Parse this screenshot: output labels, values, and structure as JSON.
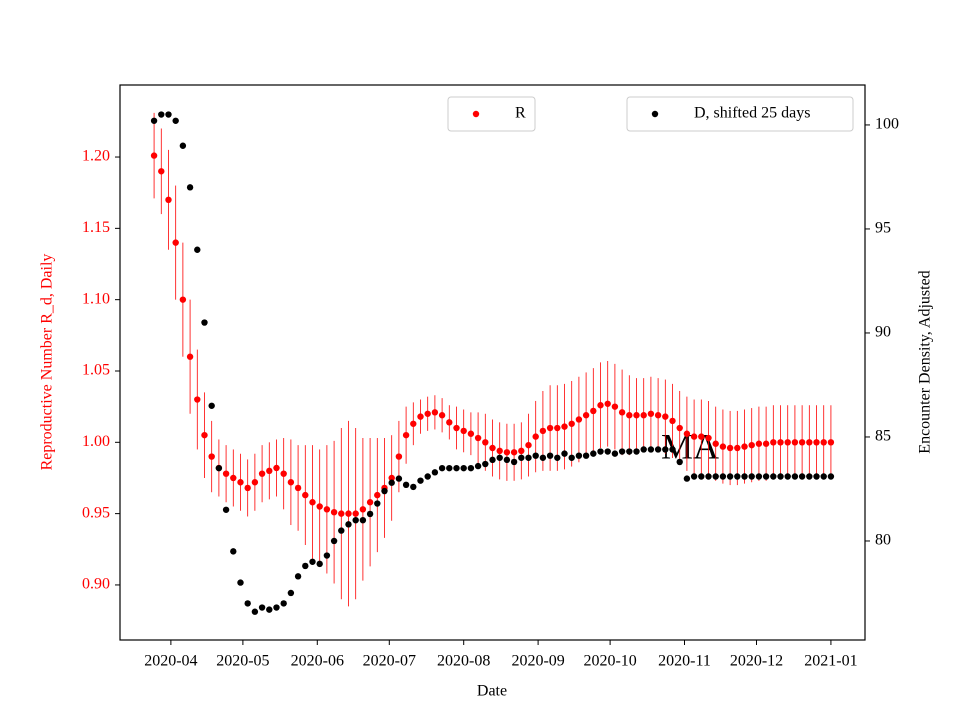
{
  "chart_data": {
    "type": "scatter",
    "xlabel": "Date",
    "ylabel": "Reproductive Number R_d, Daily",
    "y2label": "Encounter Density, Adjusted",
    "annotation": "MA",
    "xlim": [
      69.8,
      380.2
    ],
    "xticks": [
      {
        "value": 91,
        "label": "2020-04"
      },
      {
        "value": 121,
        "label": "2020-05"
      },
      {
        "value": 152,
        "label": "2020-06"
      },
      {
        "value": 182,
        "label": "2020-07"
      },
      {
        "value": 213,
        "label": "2020-08"
      },
      {
        "value": 244,
        "label": "2020-09"
      },
      {
        "value": 274,
        "label": "2020-10"
      },
      {
        "value": 305,
        "label": "2020-11"
      },
      {
        "value": 335,
        "label": "2020-12"
      },
      {
        "value": 366,
        "label": "2021-01"
      }
    ],
    "ylim": [
      0.8614,
      1.2505
    ],
    "yticks": [
      {
        "value": 0.9,
        "label": "0.90"
      },
      0.95,
      {
        "value": 1.0,
        "label": "1.00"
      },
      1.05,
      {
        "value": 1.1,
        "label": "1.10"
      },
      1.15,
      {
        "value": 1.2,
        "label": "1.20"
      }
    ],
    "y2lim": [
      75.24,
      101.92
    ],
    "y2ticks": [
      80,
      85,
      90,
      95,
      100
    ],
    "x": [
      84,
      87,
      90,
      93,
      96,
      99,
      102,
      105,
      108,
      111,
      114,
      117,
      120,
      123,
      126,
      129,
      132,
      135,
      138,
      141,
      144,
      147,
      150,
      153,
      156,
      159,
      162,
      165,
      168,
      171,
      174,
      177,
      180,
      183,
      186,
      189,
      192,
      195,
      198,
      201,
      204,
      207,
      210,
      213,
      216,
      219,
      222,
      225,
      228,
      231,
      234,
      237,
      240,
      243,
      246,
      249,
      252,
      255,
      258,
      261,
      264,
      267,
      270,
      273,
      276,
      279,
      282,
      285,
      288,
      291,
      294,
      297,
      300,
      303,
      306,
      309,
      312,
      315,
      318,
      321,
      324,
      327,
      330,
      333,
      336,
      339,
      342,
      345,
      348,
      351,
      354,
      357,
      360,
      363,
      366
    ],
    "series": [
      {
        "name": "R",
        "color": "#ff0000",
        "axis": "y",
        "legend": "top center",
        "values": [
          1.201,
          1.19,
          1.17,
          1.14,
          1.1,
          1.06,
          1.03,
          1.005,
          0.99,
          0.982,
          0.978,
          0.975,
          0.972,
          0.968,
          0.972,
          0.978,
          0.98,
          0.982,
          0.978,
          0.972,
          0.968,
          0.963,
          0.958,
          0.955,
          0.953,
          0.951,
          0.95,
          0.95,
          0.95,
          0.953,
          0.958,
          0.963,
          0.968,
          0.975,
          0.99,
          1.005,
          1.013,
          1.018,
          1.02,
          1.021,
          1.019,
          1.014,
          1.01,
          1.008,
          1.006,
          1.003,
          1.0,
          0.996,
          0.994,
          0.993,
          0.993,
          0.994,
          0.998,
          1.004,
          1.008,
          1.01,
          1.01,
          1.011,
          1.013,
          1.016,
          1.019,
          1.022,
          1.026,
          1.027,
          1.025,
          1.021,
          1.019,
          1.019,
          1.019,
          1.02,
          1.019,
          1.018,
          1.015,
          1.01,
          1.006,
          1.004,
          1.004,
          1.003,
          0.999,
          0.997,
          0.996,
          0.996,
          0.997,
          0.998,
          0.999,
          0.999,
          1.0,
          1.0,
          1.0,
          1.0,
          1.0,
          1.0,
          1.0,
          1.0,
          1.0
        ],
        "errors": [
          0.03,
          0.03,
          0.035,
          0.04,
          0.04,
          0.04,
          0.035,
          0.03,
          0.025,
          0.02,
          0.02,
          0.02,
          0.02,
          0.02,
          0.02,
          0.02,
          0.02,
          0.02,
          0.025,
          0.03,
          0.03,
          0.035,
          0.04,
          0.04,
          0.045,
          0.05,
          0.06,
          0.065,
          0.06,
          0.05,
          0.045,
          0.04,
          0.035,
          0.03,
          0.025,
          0.02,
          0.015,
          0.012,
          0.012,
          0.012,
          0.012,
          0.012,
          0.015,
          0.015,
          0.015,
          0.018,
          0.02,
          0.02,
          0.02,
          0.02,
          0.02,
          0.02,
          0.022,
          0.025,
          0.028,
          0.03,
          0.03,
          0.03,
          0.03,
          0.03,
          0.03,
          0.03,
          0.03,
          0.03,
          0.03,
          0.03,
          0.028,
          0.026,
          0.026,
          0.026,
          0.026,
          0.026,
          0.026,
          0.026,
          0.026,
          0.026,
          0.026,
          0.026,
          0.026,
          0.026,
          0.026,
          0.026,
          0.026,
          0.026,
          0.026,
          0.026,
          0.026,
          0.026,
          0.026,
          0.026,
          0.026,
          0.026,
          0.026,
          0.026,
          0.026
        ]
      },
      {
        "name": "D, shifted 25 days",
        "color": "#000000",
        "axis": "y2",
        "legend": "top right",
        "values": [
          100.2,
          100.5,
          100.5,
          100.2,
          99,
          97,
          94,
          90.5,
          86.5,
          83.5,
          81.5,
          79.5,
          78,
          77,
          76.6,
          76.8,
          76.7,
          76.8,
          77,
          77.5,
          78.3,
          78.8,
          79,
          78.9,
          79.3,
          80,
          80.5,
          80.8,
          81,
          81,
          81.3,
          81.8,
          82.4,
          82.8,
          83,
          82.7,
          82.6,
          82.9,
          83.1,
          83.3,
          83.5,
          83.5,
          83.5,
          83.5,
          83.5,
          83.6,
          83.7,
          83.9,
          84,
          83.9,
          83.8,
          84,
          84,
          84.1,
          84,
          84.1,
          84,
          84.2,
          84,
          84.1,
          84.1,
          84.2,
          84.3,
          84.3,
          84.2,
          84.3,
          84.3,
          84.3,
          84.4,
          84.4,
          84.4,
          84.4,
          84.4,
          83.8,
          83,
          83.1,
          83.1,
          83.1,
          83.1,
          83.1,
          83.1,
          83.1,
          83.1,
          83.1,
          83.1,
          83.1,
          83.1,
          83.1,
          83.1,
          83.1,
          83.1,
          83.1,
          83.1,
          83.1,
          83.1
        ]
      }
    ]
  }
}
